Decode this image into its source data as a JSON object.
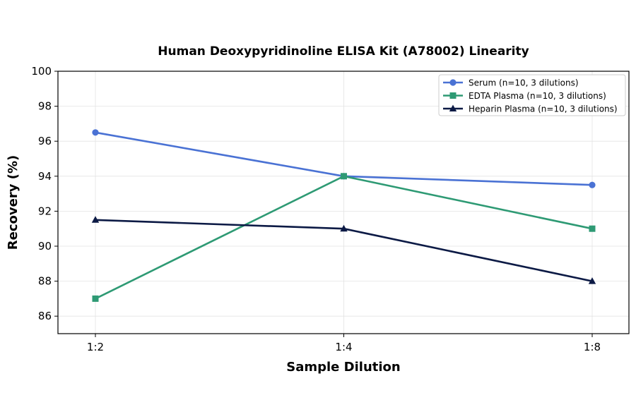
{
  "chart_data": {
    "type": "line",
    "title": "Human Deoxypyridinoline ELISA Kit (A78002) Linearity",
    "xlabel": "Sample Dilution",
    "ylabel": "Recovery (%)",
    "categories": [
      "1:2",
      "1:4",
      "1:8"
    ],
    "ylim": [
      85,
      100
    ],
    "yticks": [
      86,
      88,
      90,
      92,
      94,
      96,
      98,
      100
    ],
    "grid": true,
    "legend_position": "top-right",
    "series": [
      {
        "name": "Serum (n=10, 3 dilutions)",
        "values": [
          96.5,
          94.0,
          93.5
        ],
        "color": "#4a72d4",
        "marker": "circle"
      },
      {
        "name": "EDTA Plasma (n=10, 3 dilutions)",
        "values": [
          87.0,
          94.0,
          91.0
        ],
        "color": "#2e9a74",
        "marker": "square"
      },
      {
        "name": "Heparin Plasma (n=10, 3 dilutions)",
        "values": [
          91.5,
          91.0,
          88.0
        ],
        "color": "#0c1a45",
        "marker": "triangle"
      }
    ]
  }
}
